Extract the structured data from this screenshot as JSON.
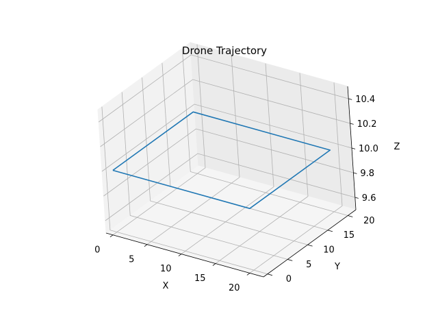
{
  "chart_data": {
    "type": "line",
    "projection": "3d",
    "title": "Drone Trajectory",
    "xlabel": "X",
    "ylabel": "Y",
    "zlabel": "Z",
    "xlim": [
      -1,
      22
    ],
    "ylim": [
      -1,
      22
    ],
    "zlim": [
      9.5,
      10.5
    ],
    "xticks": [
      "0",
      "5",
      "10",
      "15",
      "20"
    ],
    "yticks": [
      "0",
      "5",
      "10",
      "15",
      "20"
    ],
    "zticks": [
      "9.6",
      "9.8",
      "10.0",
      "10.2",
      "10.4"
    ],
    "grid": true,
    "series": [
      {
        "color": "#1f77b4",
        "x": [
          0,
          20,
          20,
          0,
          0
        ],
        "y": [
          0,
          0,
          20,
          20,
          0
        ],
        "z": [
          10,
          10,
          10,
          10,
          10
        ]
      }
    ]
  }
}
